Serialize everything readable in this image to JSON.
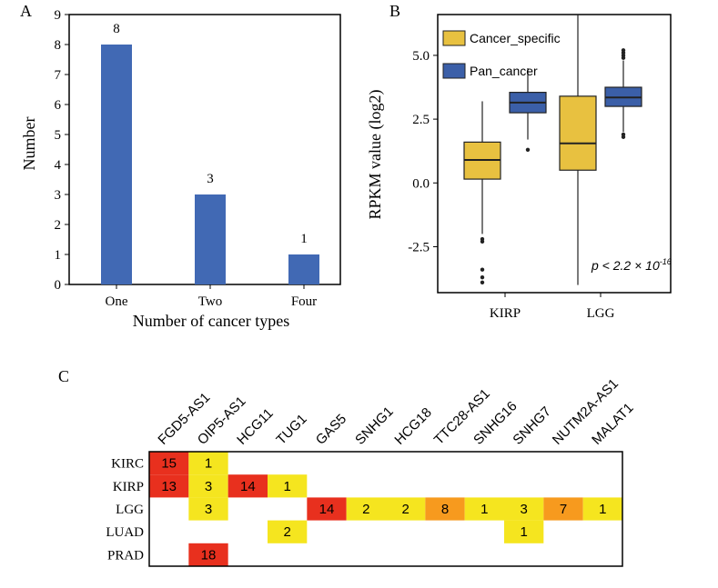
{
  "panels": {
    "a": "A",
    "b": "B",
    "c": "C"
  },
  "chart_data": [
    {
      "type": "bar",
      "categories": [
        "One",
        "Two",
        "Four"
      ],
      "values": [
        8,
        3,
        1
      ],
      "data_labels": [
        "8",
        "3",
        "1"
      ],
      "ylabel": "Number",
      "xlabel": "Number of cancer types",
      "ylim": [
        0,
        9
      ],
      "yticks": [
        "0",
        "1",
        "2",
        "3",
        "4",
        "5",
        "6",
        "7",
        "8",
        "9"
      ],
      "bar_color": "#4169b4"
    },
    {
      "type": "box",
      "categories": [
        "KIRP",
        "LGG"
      ],
      "ylabel": "RPKM value (log2)",
      "ylim": [
        -4.3,
        6.6
      ],
      "yticks": [
        {
          "value": 5.0,
          "label": "5.0"
        },
        {
          "value": 2.5,
          "label": "2.5"
        },
        {
          "value": 0.0,
          "label": "0.0"
        },
        {
          "value": -2.5,
          "label": "-2.5"
        }
      ],
      "annotation": {
        "text": "p < 2.2 × 10",
        "superscript": "-16"
      },
      "series": [
        {
          "name": "Cancer_specific",
          "color": "#e8c140",
          "boxes": [
            {
              "category": "KIRP",
              "min": -2.0,
              "q1": 0.15,
              "median": 0.9,
              "q3": 1.6,
              "max": 3.2,
              "outliers": [
                -2.2,
                -2.3,
                -3.4,
                -3.7,
                -3.9
              ]
            },
            {
              "category": "LGG",
              "min": -4.0,
              "q1": 0.5,
              "median": 1.55,
              "q3": 3.4,
              "max": 6.6,
              "outliers": []
            }
          ]
        },
        {
          "name": "Pan_cancer",
          "color": "#3b5fa8",
          "boxes": [
            {
              "category": "KIRP",
              "min": 1.7,
              "q1": 2.75,
              "median": 3.15,
              "q3": 3.55,
              "max": 4.5,
              "outliers": [
                1.3
              ]
            },
            {
              "category": "LGG",
              "min": 2.0,
              "q1": 3.0,
              "median": 3.35,
              "q3": 3.75,
              "max": 4.8,
              "outliers": [
                1.8,
                1.9,
                4.9,
                5.0,
                5.1,
                5.2
              ]
            }
          ]
        }
      ]
    },
    {
      "type": "heatmap",
      "columns": [
        "FGD5-AS1",
        "OIP5-AS1",
        "HCG11",
        "TUG1",
        "GAS5",
        "SNHG1",
        "HCG18",
        "TTC28-AS1",
        "SNHG16",
        "SNHG7",
        "NUTM2A-AS1",
        "MALAT1"
      ],
      "rows": [
        "KIRC",
        "KIRP",
        "LGG",
        "LUAD",
        "PRAD"
      ],
      "values": [
        [
          15,
          1,
          null,
          null,
          null,
          null,
          null,
          null,
          null,
          null,
          null,
          null
        ],
        [
          13,
          3,
          14,
          1,
          null,
          null,
          null,
          null,
          null,
          null,
          null,
          null
        ],
        [
          null,
          3,
          null,
          null,
          14,
          2,
          2,
          8,
          1,
          3,
          7,
          1
        ],
        [
          null,
          null,
          null,
          2,
          null,
          null,
          null,
          null,
          null,
          1,
          null,
          null
        ],
        [
          null,
          18,
          null,
          null,
          null,
          null,
          null,
          null,
          null,
          null,
          null,
          null
        ]
      ],
      "colors": {
        "low": "#f5e51f",
        "mid": "#f79a1e",
        "high": "#e8301e"
      }
    }
  ]
}
